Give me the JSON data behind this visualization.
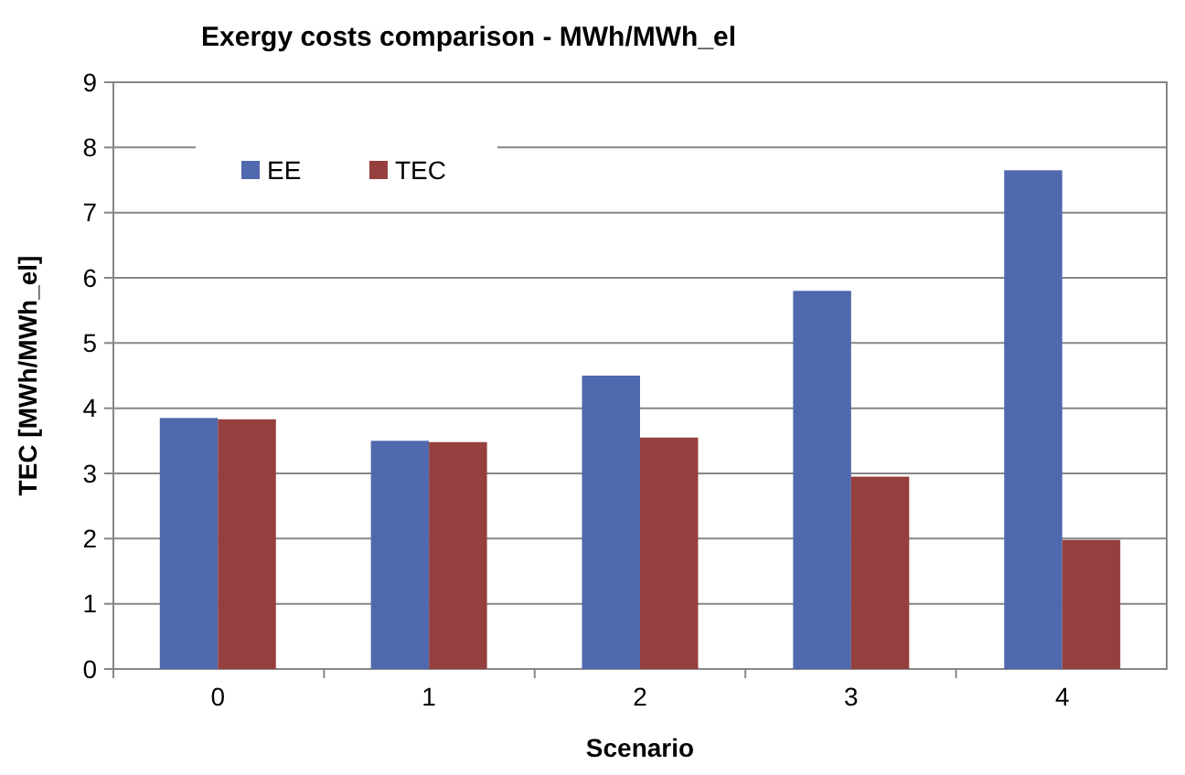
{
  "chart_data": {
    "type": "bar",
    "title": "Exergy costs comparison - MWh/MWh_el",
    "xlabel": "Scenario",
    "ylabel": "TEC [MWh/MWh_el]",
    "categories": [
      "0",
      "1",
      "2",
      "3",
      "4"
    ],
    "series": [
      {
        "name": "EE",
        "color": "#5068ad",
        "values": [
          3.85,
          3.5,
          4.5,
          5.8,
          7.65
        ]
      },
      {
        "name": "TEC",
        "color": "#953f3f",
        "values": [
          3.83,
          3.48,
          3.55,
          2.95,
          1.98
        ]
      }
    ],
    "ylim": [
      0,
      9
    ],
    "yticks": [
      0,
      1,
      2,
      3,
      4,
      5,
      6,
      7,
      8,
      9
    ],
    "grid": "y",
    "legend": "top left"
  }
}
